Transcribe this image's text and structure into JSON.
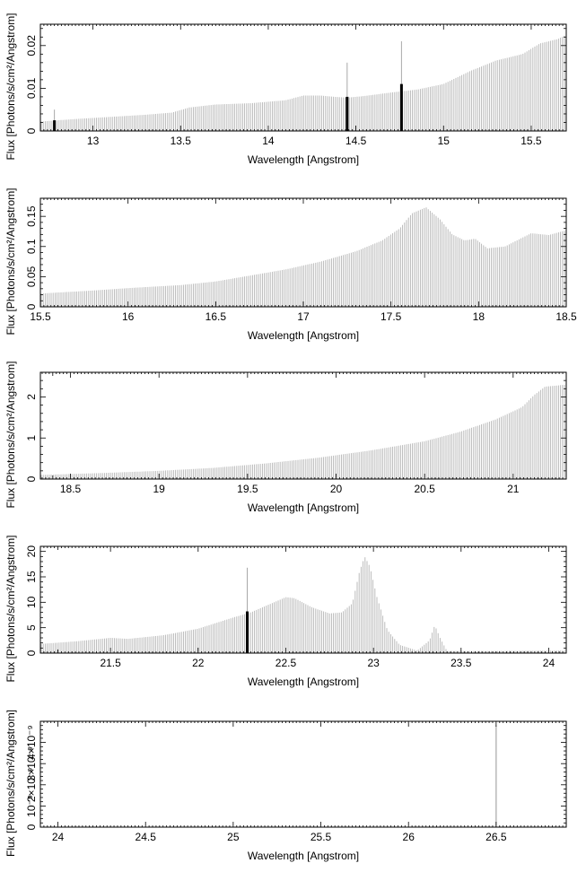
{
  "chart_data": [
    {
      "type": "bar",
      "xlabel": "Wavelength [Angstrom]",
      "ylabel": "Flux [Photons/s/cm²/Angstrom]",
      "xlim": [
        12.7,
        15.7
      ],
      "ylim": [
        0,
        0.025
      ],
      "xticks": [
        13,
        13.5,
        14,
        14.5,
        15,
        15.5
      ],
      "yticks": [
        0,
        0.01,
        0.02
      ],
      "xtick_labels": [
        "13",
        "13.5",
        "14",
        "14.5",
        "15",
        "15.5"
      ],
      "ytick_labels": [
        "0",
        "0.01",
        "0.02"
      ],
      "grid": false,
      "curve": [
        [
          12.7,
          0.0022
        ],
        [
          12.9,
          0.0028
        ],
        [
          13.1,
          0.0033
        ],
        [
          13.3,
          0.0038
        ],
        [
          13.45,
          0.0043
        ],
        [
          13.55,
          0.0055
        ],
        [
          13.7,
          0.0062
        ],
        [
          13.9,
          0.0065
        ],
        [
          14.1,
          0.0072
        ],
        [
          14.2,
          0.0083
        ],
        [
          14.3,
          0.0083
        ],
        [
          14.38,
          0.008
        ],
        [
          14.45,
          0.0078
        ],
        [
          14.55,
          0.0082
        ],
        [
          14.7,
          0.009
        ],
        [
          14.85,
          0.0097
        ],
        [
          15.0,
          0.011
        ],
        [
          15.15,
          0.014
        ],
        [
          15.3,
          0.0165
        ],
        [
          15.45,
          0.018
        ],
        [
          15.55,
          0.0205
        ],
        [
          15.65,
          0.0215
        ],
        [
          15.7,
          0.0225
        ]
      ],
      "markers": [
        {
          "x": 12.78,
          "bar": 0.0025,
          "spike": 0.005
        },
        {
          "x": 14.45,
          "bar": 0.008,
          "spike": 0.016
        },
        {
          "x": 14.76,
          "bar": 0.011,
          "spike": 0.021
        }
      ]
    },
    {
      "type": "bar",
      "xlabel": "Wavelength [Angstrom]",
      "ylabel": "Flux [Photons/s/cm²/Angstrom]",
      "xlim": [
        15.5,
        18.5
      ],
      "ylim": [
        0,
        0.18
      ],
      "xticks": [
        15.5,
        16,
        16.5,
        17,
        17.5,
        18,
        18.5
      ],
      "yticks": [
        0,
        0.05,
        0.1,
        0.15
      ],
      "xtick_labels": [
        "15.5",
        "16",
        "16.5",
        "17",
        "17.5",
        "18",
        "18.5"
      ],
      "ytick_labels": [
        "0",
        "0.05",
        "0.1",
        "0.15"
      ],
      "grid": false,
      "curve": [
        [
          15.5,
          0.022
        ],
        [
          15.8,
          0.027
        ],
        [
          16.0,
          0.031
        ],
        [
          16.3,
          0.036
        ],
        [
          16.5,
          0.042
        ],
        [
          16.7,
          0.052
        ],
        [
          16.9,
          0.062
        ],
        [
          17.1,
          0.075
        ],
        [
          17.3,
          0.092
        ],
        [
          17.45,
          0.11
        ],
        [
          17.55,
          0.13
        ],
        [
          17.62,
          0.155
        ],
        [
          17.7,
          0.165
        ],
        [
          17.78,
          0.145
        ],
        [
          17.85,
          0.12
        ],
        [
          17.92,
          0.11
        ],
        [
          17.98,
          0.113
        ],
        [
          18.05,
          0.097
        ],
        [
          18.15,
          0.1
        ],
        [
          18.3,
          0.122
        ],
        [
          18.4,
          0.119
        ],
        [
          18.5,
          0.127
        ]
      ],
      "markers": []
    },
    {
      "type": "bar",
      "xlabel": "Wavelength [Angstrom]",
      "ylabel": "Flux [Photons/s/cm²/Angstrom]",
      "xlim": [
        18.33,
        21.3
      ],
      "ylim": [
        0,
        2.6
      ],
      "xticks": [
        18.5,
        19,
        19.5,
        20,
        20.5,
        21
      ],
      "yticks": [
        0,
        1,
        2
      ],
      "xtick_labels": [
        "18.5",
        "19",
        "19.5",
        "20",
        "20.5",
        "21"
      ],
      "ytick_labels": [
        "0",
        "1",
        "2"
      ],
      "grid": false,
      "curve": [
        [
          18.33,
          0.1
        ],
        [
          18.7,
          0.15
        ],
        [
          19.0,
          0.2
        ],
        [
          19.3,
          0.27
        ],
        [
          19.6,
          0.38
        ],
        [
          19.9,
          0.52
        ],
        [
          20.2,
          0.7
        ],
        [
          20.5,
          0.92
        ],
        [
          20.7,
          1.15
        ],
        [
          20.9,
          1.45
        ],
        [
          21.05,
          1.75
        ],
        [
          21.12,
          2.05
        ],
        [
          21.18,
          2.25
        ],
        [
          21.3,
          2.3
        ]
      ],
      "markers": []
    },
    {
      "type": "bar",
      "xlabel": "Wavelength [Angstrom]",
      "ylabel": "Flux [Photons/s/cm²/Angstrom]",
      "xlim": [
        21.1,
        24.1
      ],
      "ylim": [
        0,
        21
      ],
      "xticks": [
        21.5,
        22,
        22.5,
        23,
        23.5,
        24
      ],
      "yticks": [
        0,
        5,
        10,
        15,
        20
      ],
      "xtick_labels": [
        "21.5",
        "22",
        "22.5",
        "23",
        "23.5",
        "24"
      ],
      "ytick_labels": [
        "0",
        "5",
        "10",
        "15",
        "20"
      ],
      "grid": false,
      "curve": [
        [
          21.1,
          1.8
        ],
        [
          21.3,
          2.3
        ],
        [
          21.5,
          3.0
        ],
        [
          21.6,
          2.8
        ],
        [
          21.8,
          3.5
        ],
        [
          22.0,
          4.8
        ],
        [
          22.2,
          7.0
        ],
        [
          22.3,
          8.0
        ],
        [
          22.4,
          9.5
        ],
        [
          22.5,
          11.0
        ],
        [
          22.55,
          10.8
        ],
        [
          22.65,
          9.0
        ],
        [
          22.75,
          7.8
        ],
        [
          22.82,
          8.0
        ],
        [
          22.88,
          9.8
        ],
        [
          22.92,
          16.0
        ],
        [
          22.95,
          19.0
        ],
        [
          22.98,
          17.0
        ],
        [
          23.02,
          11.0
        ],
        [
          23.08,
          4.5
        ],
        [
          23.15,
          1.6
        ],
        [
          23.25,
          0.5
        ],
        [
          23.32,
          2.5
        ],
        [
          23.35,
          5.5
        ],
        [
          23.38,
          3.0
        ],
        [
          23.42,
          0.4
        ],
        [
          23.6,
          0.4
        ],
        [
          24.1,
          0.5
        ]
      ],
      "markers": [
        {
          "x": 22.28,
          "bar": 8.2,
          "spike": 16.8
        }
      ]
    },
    {
      "type": "bar",
      "xlabel": "Wavelength [Angstrom]",
      "ylabel": "Flux [Photons/s/cm²/Angstrom]",
      "xlim": [
        23.9,
        26.9
      ],
      "ylim": [
        0,
        5e-09
      ],
      "xticks": [
        24,
        24.5,
        25,
        25.5,
        26,
        26.5
      ],
      "yticks": [
        0,
        1e-09,
        2e-09,
        3e-09,
        4e-09
      ],
      "xtick_labels": [
        "24",
        "24.5",
        "25",
        "25.5",
        "26",
        "26.5"
      ],
      "ytick_labels": [
        "0",
        "10⁻⁹",
        "2×10⁻⁹",
        "3×10⁻⁹",
        "4×10⁻⁹"
      ],
      "grid": false,
      "curve": [
        [
          23.9,
          0
        ],
        [
          26.9,
          0
        ]
      ],
      "markers": [],
      "spike_lines": [
        {
          "x": 26.5,
          "y": 4.8e-09
        }
      ]
    }
  ]
}
